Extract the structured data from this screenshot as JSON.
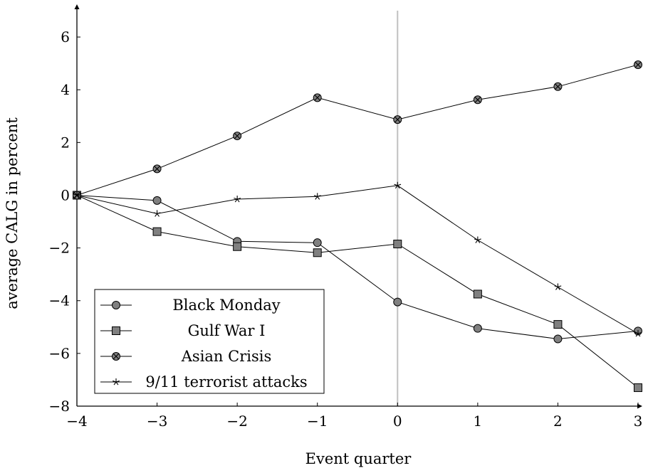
{
  "chart_data": {
    "type": "line",
    "title": "",
    "xlabel": "Event quarter",
    "ylabel": "average CALG in percent",
    "xlim": [
      -4,
      3
    ],
    "ylim": [
      -8,
      7
    ],
    "x": [
      -4,
      -3,
      -2,
      -1,
      0,
      1,
      2,
      3
    ],
    "xticks": [
      -4,
      -3,
      -2,
      -1,
      0,
      1,
      2,
      3
    ],
    "yticks": [
      -8,
      -6,
      -4,
      -2,
      0,
      2,
      4,
      6
    ],
    "xtick_labels": [
      "−4",
      "−3",
      "−2",
      "−1",
      "0",
      "1",
      "2",
      "3"
    ],
    "ytick_labels": [
      "−8",
      "−6",
      "−4",
      "−2",
      "0",
      "2",
      "4",
      "6"
    ],
    "reference_line_x": 0,
    "grid": false,
    "legend_position": "bottom-left",
    "series": [
      {
        "name": "Black Monday",
        "marker": "circle",
        "values": [
          0,
          -0.2,
          -1.75,
          -1.8,
          -4.05,
          -5.05,
          -5.45,
          -5.15
        ]
      },
      {
        "name": "Gulf War I",
        "marker": "square",
        "values": [
          0,
          -1.38,
          -1.95,
          -2.18,
          -1.85,
          -3.75,
          -4.9,
          -7.3
        ]
      },
      {
        "name": "Asian Crisis",
        "marker": "otimes",
        "values": [
          0,
          1.0,
          2.25,
          3.7,
          2.87,
          3.62,
          4.12,
          4.95
        ]
      },
      {
        "name": "9/11 terrorist attacks",
        "marker": "star",
        "values": [
          0,
          -0.7,
          -0.15,
          -0.05,
          0.37,
          -1.7,
          -3.48,
          -5.25
        ]
      }
    ],
    "colors": {
      "line": "#000000",
      "marker_fill": "#808080",
      "reference_line": "#c0c0c0"
    }
  }
}
